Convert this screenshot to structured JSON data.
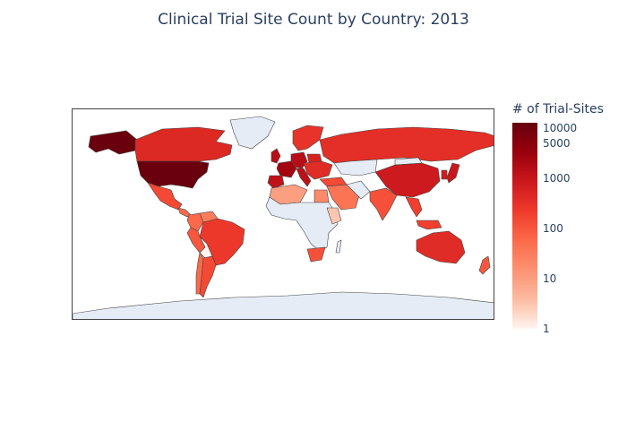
{
  "title": "Clinical Trial Site Count by Country: 2013",
  "colorbar": {
    "title": "# of Trial-Sites",
    "ticks": [
      "10000",
      "5000",
      "1000",
      "100",
      "10",
      "1"
    ],
    "tick_values": [
      10000,
      5000,
      1000,
      100,
      10,
      1
    ],
    "scale": "log",
    "range": [
      1,
      13000
    ],
    "colors": [
      "#fff5f0",
      "#fcbba1",
      "#fc9272",
      "#fb6a4a",
      "#ef3b2c",
      "#cb181d",
      "#99000d",
      "#67000d"
    ]
  },
  "colors": {
    "no_data": "#e5ecf6",
    "border": "#444444"
  },
  "regions": {
    "usa": 12000,
    "alaska": 12000,
    "canada": 450,
    "mexico": 150,
    "central_america": 60,
    "colombia": 60,
    "venezuela": 30,
    "peru": 100,
    "brazil": 250,
    "bolivia": 1,
    "chile": 60,
    "argentina": 150,
    "uk": 1500,
    "france": 2500,
    "spain": 1200,
    "germany": 1500,
    "italy": 1300,
    "poland": 600,
    "eastern_europe": 400,
    "scandinavia": 300,
    "russia": 350,
    "turkey": 150,
    "middle_east": 40,
    "egypt": 20,
    "north_africa_west": 10,
    "south_africa": 120,
    "east_africa": 3,
    "india": 120,
    "china": 800,
    "japan": 900,
    "korea": 700,
    "southeast_asia": 200,
    "australia": 400,
    "new_zealand": 100
  }
}
